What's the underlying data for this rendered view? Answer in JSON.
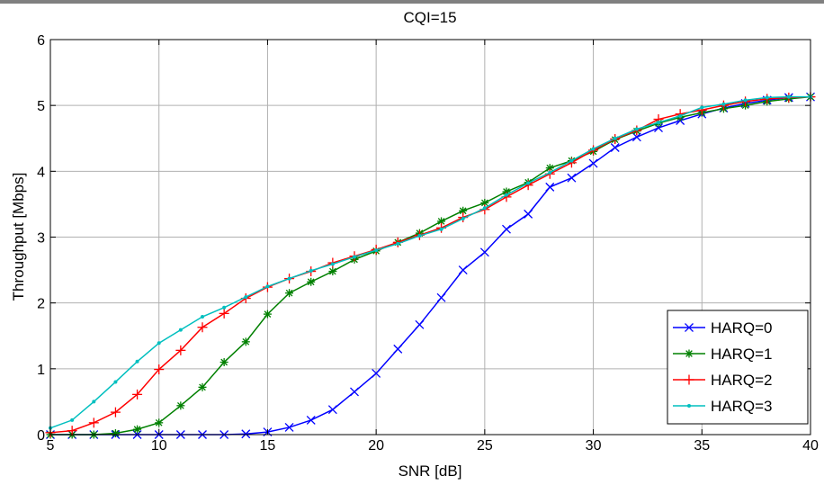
{
  "chart_data": {
    "type": "line",
    "title": "CQI=15",
    "xlabel": "SNR [dB]",
    "ylabel": "Throughput [Mbps]",
    "xlim": [
      5,
      40
    ],
    "ylim": [
      0,
      6
    ],
    "xticks": [
      5,
      10,
      15,
      20,
      25,
      30,
      35,
      40
    ],
    "yticks": [
      0,
      1,
      2,
      3,
      4,
      5,
      6
    ],
    "grid": true,
    "legend_position": "bottom-right",
    "x": [
      5,
      6,
      7,
      8,
      9,
      10,
      11,
      12,
      13,
      14,
      15,
      16,
      17,
      18,
      19,
      20,
      21,
      22,
      23,
      24,
      25,
      26,
      27,
      28,
      29,
      30,
      31,
      32,
      33,
      34,
      35,
      36,
      37,
      38,
      39,
      40
    ],
    "series": [
      {
        "name": "HARQ=0",
        "color": "#0000ff",
        "marker": "x",
        "values": [
          0,
          0,
          0,
          0,
          0,
          0,
          0,
          0,
          0,
          0.01,
          0.04,
          0.11,
          0.22,
          0.38,
          0.65,
          0.93,
          1.3,
          1.67,
          2.08,
          2.5,
          2.77,
          3.12,
          3.35,
          3.76,
          3.9,
          4.12,
          4.36,
          4.52,
          4.66,
          4.77,
          4.87,
          4.96,
          5.03,
          5.08,
          5.12,
          5.13
        ]
      },
      {
        "name": "HARQ=1",
        "color": "#008000",
        "marker": "*",
        "values": [
          0,
          0,
          0,
          0.02,
          0.08,
          0.18,
          0.44,
          0.72,
          1.1,
          1.41,
          1.83,
          2.15,
          2.32,
          2.48,
          2.66,
          2.79,
          2.92,
          3.06,
          3.24,
          3.4,
          3.52,
          3.69,
          3.83,
          4.05,
          4.16,
          4.3,
          4.48,
          4.61,
          4.73,
          4.82,
          4.89,
          4.95,
          5.0,
          5.06,
          5.1,
          5.13
        ]
      },
      {
        "name": "HARQ=2",
        "color": "#ff0000",
        "marker": "+",
        "values": [
          0.03,
          0.06,
          0.18,
          0.34,
          0.61,
          0.99,
          1.28,
          1.63,
          1.84,
          2.07,
          2.24,
          2.37,
          2.48,
          2.61,
          2.71,
          2.81,
          2.92,
          3.03,
          3.14,
          3.3,
          3.42,
          3.61,
          3.79,
          3.96,
          4.13,
          4.32,
          4.49,
          4.62,
          4.79,
          4.87,
          4.93,
          5.0,
          5.06,
          5.1,
          5.12,
          5.13
        ]
      },
      {
        "name": "HARQ=3",
        "color": "#00bfbf",
        "marker": ".",
        "values": [
          0.1,
          0.22,
          0.5,
          0.8,
          1.11,
          1.39,
          1.59,
          1.79,
          1.93,
          2.09,
          2.25,
          2.37,
          2.49,
          2.59,
          2.7,
          2.8,
          2.9,
          3.02,
          3.12,
          3.28,
          3.44,
          3.64,
          3.82,
          3.98,
          4.16,
          4.34,
          4.5,
          4.64,
          4.74,
          4.84,
          4.97,
          5.02,
          5.08,
          5.12,
          5.13,
          5.13
        ]
      }
    ]
  }
}
